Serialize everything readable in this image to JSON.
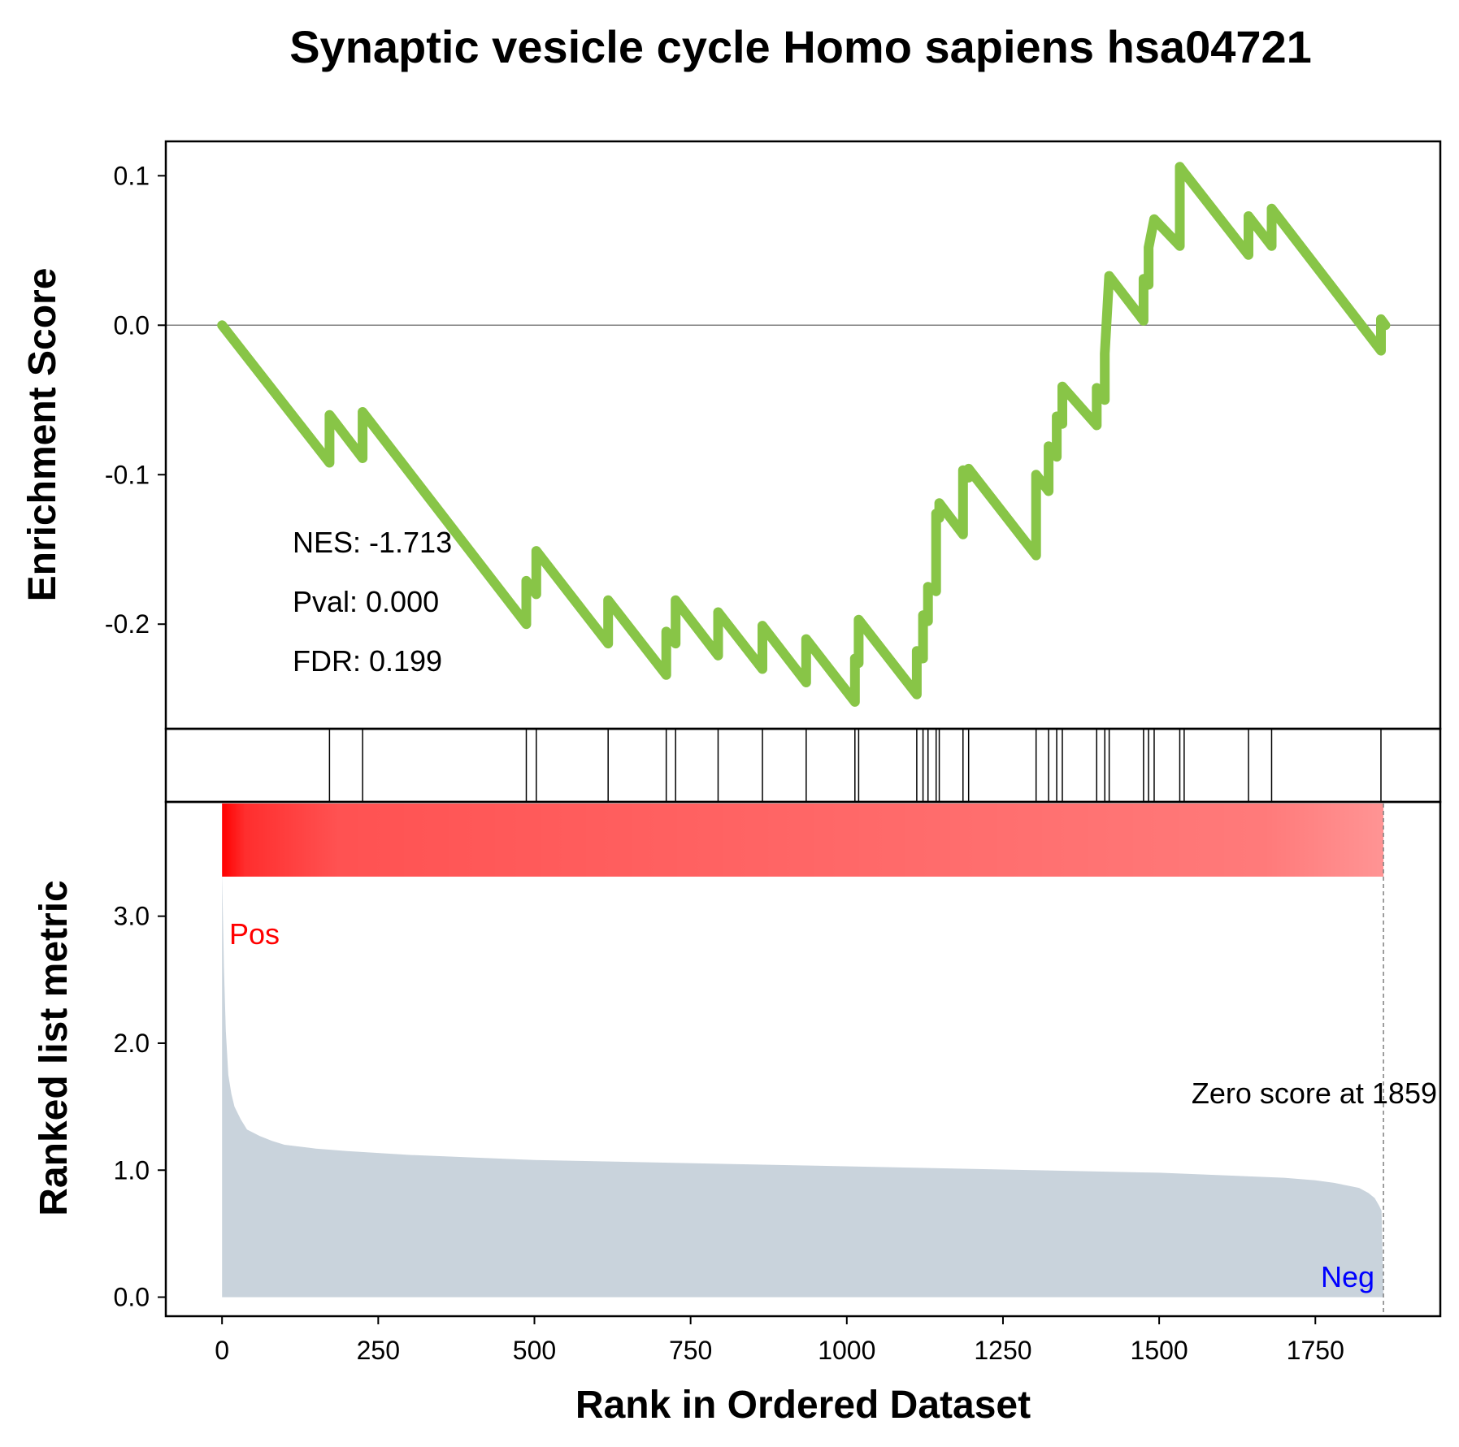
{
  "chart_data": {
    "type": "line",
    "title": "Synaptic vesicle cycle Homo sapiens hsa04721",
    "xlabel": "Rank in Ordered Dataset",
    "xlim": [
      -90,
      1950
    ],
    "x_ticks": [
      {
        "value": 0,
        "label": "0"
      },
      {
        "value": 250,
        "label": "250"
      },
      {
        "value": 500,
        "label": "500"
      },
      {
        "value": 750,
        "label": "750"
      },
      {
        "value": 1000,
        "label": "1000"
      },
      {
        "value": 1250,
        "label": "1250"
      },
      {
        "value": 1500,
        "label": "1500"
      },
      {
        "value": 1750,
        "label": "1750"
      }
    ],
    "es_panel": {
      "ylabel": "Enrichment Score",
      "ylim": [
        -0.27,
        0.123
      ],
      "y_ticks": [
        {
          "value": 0.1,
          "label": "0.1"
        },
        {
          "value": 0.0,
          "label": "0.0"
        },
        {
          "value": -0.1,
          "label": "-0.1"
        },
        {
          "value": -0.2,
          "label": "-0.2"
        }
      ],
      "line_color": "#88c547",
      "series": [
        {
          "x": [
            0,
            172,
            172,
            225,
            225,
            487,
            487,
            503,
            503,
            618,
            618,
            711,
            711,
            726,
            726,
            794,
            794,
            865,
            865,
            935,
            935,
            1013,
            1013,
            1019,
            1019,
            1112,
            1112,
            1122,
            1122,
            1130,
            1130,
            1143,
            1143,
            1148,
            1148,
            1186,
            1186,
            1195,
            1195,
            1303,
            1303,
            1323,
            1323,
            1336,
            1336,
            1345,
            1345,
            1400,
            1400,
            1413,
            1413,
            1420,
            1420,
            1475,
            1475,
            1483,
            1483,
            1492,
            1492,
            1533,
            1533,
            1540,
            1540,
            1643,
            1643,
            1680,
            1680,
            1855,
            1855,
            1862
          ],
          "y": [
            0.0,
            -0.092,
            -0.06,
            -0.089,
            -0.058,
            -0.2,
            -0.171,
            -0.18,
            -0.151,
            -0.213,
            -0.184,
            -0.234,
            -0.205,
            -0.213,
            -0.184,
            -0.221,
            -0.192,
            -0.23,
            -0.201,
            -0.239,
            -0.21,
            -0.252,
            -0.223,
            -0.226,
            -0.197,
            -0.247,
            -0.218,
            -0.223,
            -0.194,
            -0.198,
            -0.175,
            -0.178,
            -0.126,
            -0.129,
            -0.119,
            -0.14,
            -0.097,
            -0.102,
            -0.096,
            -0.154,
            -0.1,
            -0.111,
            -0.081,
            -0.088,
            -0.061,
            -0.066,
            -0.041,
            -0.067,
            -0.042,
            -0.05,
            -0.019,
            0.033,
            0.033,
            0.003,
            0.031,
            0.027,
            0.052,
            0.071,
            0.071,
            0.053,
            0.106,
            0.102,
            0.102,
            0.047,
            0.073,
            0.053,
            0.078,
            -0.017,
            0.004,
            0.0
          ]
        }
      ],
      "stats": {
        "nes": "NES: -1.713",
        "pval": "Pval: 0.000",
        "fdr": "FDR: 0.199"
      }
    },
    "hits_panel": {
      "hit_ranks": [
        172,
        225,
        487,
        503,
        618,
        711,
        726,
        794,
        865,
        935,
        1013,
        1019,
        1112,
        1122,
        1130,
        1143,
        1148,
        1186,
        1195,
        1303,
        1323,
        1336,
        1345,
        1400,
        1413,
        1420,
        1475,
        1483,
        1492,
        1533,
        1540,
        1643,
        1680,
        1855
      ]
    },
    "rank_panel": {
      "ylabel": "Ranked list metric",
      "ylim": [
        -0.15,
        3.9
      ],
      "y_ticks": [
        {
          "value": 0.0,
          "label": "0.0"
        },
        {
          "value": 1.0,
          "label": "1.0"
        },
        {
          "value": 2.0,
          "label": "2.0"
        },
        {
          "value": 3.0,
          "label": "3.0"
        }
      ],
      "fill_color": "#c9d3dc",
      "gradient_color": "#ff0000",
      "series": [
        {
          "x": [
            0,
            3,
            6,
            10,
            15,
            20,
            30,
            40,
            60,
            80,
            100,
            150,
            200,
            300,
            400,
            500,
            700,
            900,
            1100,
            1300,
            1500,
            1600,
            1700,
            1750,
            1780,
            1800,
            1820,
            1835,
            1845,
            1852,
            1856,
            1859
          ],
          "y": [
            3.35,
            2.6,
            2.1,
            1.75,
            1.6,
            1.5,
            1.4,
            1.32,
            1.27,
            1.23,
            1.2,
            1.17,
            1.15,
            1.12,
            1.1,
            1.08,
            1.06,
            1.04,
            1.02,
            1.0,
            0.98,
            0.96,
            0.94,
            0.92,
            0.9,
            0.88,
            0.86,
            0.82,
            0.78,
            0.72,
            0.68,
            0.0
          ]
        }
      ],
      "zero_score_rank": 1859,
      "zero_score_label": "Zero score at 1859",
      "pos_label": "Pos",
      "pos_color": "#ff0000",
      "neg_label": "Neg",
      "neg_color": "#0000ff"
    }
  }
}
